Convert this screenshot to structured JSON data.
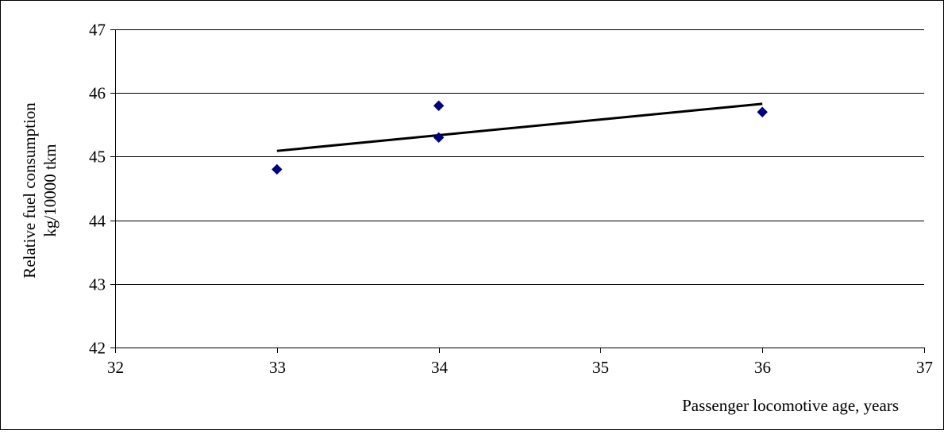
{
  "chart_data": {
    "type": "scatter",
    "title": "",
    "xlabel": "Passenger locomotive age, years",
    "ylabel_lines": [
      "Relative fuel consumption",
      "kg/10000 tkm"
    ],
    "xlim": [
      32,
      37
    ],
    "ylim": [
      42,
      47
    ],
    "xticks": [
      32,
      33,
      34,
      35,
      36,
      37
    ],
    "yticks": [
      42,
      43,
      44,
      45,
      46,
      47
    ],
    "grid": "horizontal",
    "legend": "none",
    "series": [
      {
        "points": [
          {
            "x": 33,
            "y": 44.8
          },
          {
            "x": 34,
            "y": 45.8
          },
          {
            "x": 34,
            "y": 45.3
          },
          {
            "x": 36,
            "y": 45.7
          }
        ],
        "color": "#000080",
        "marker": "diamond"
      }
    ],
    "trendline": {
      "type": "linear",
      "from": {
        "x": 33,
        "y": 45.09
      },
      "to": {
        "x": 36,
        "y": 45.83
      },
      "color": "#000000"
    }
  }
}
